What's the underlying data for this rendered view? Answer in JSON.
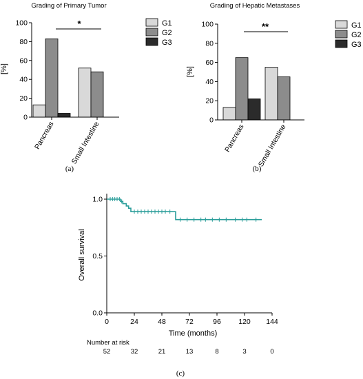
{
  "chart_data": [
    {
      "id": "a",
      "type": "bar",
      "title": "Grading of Primary Tumor",
      "ylabel": "[%]",
      "xlabel": "",
      "ylim": [
        0,
        100
      ],
      "yticks": [
        0,
        20,
        40,
        60,
        80,
        100
      ],
      "categories": [
        "Pancreas",
        "Small Intestine"
      ],
      "series": [
        {
          "name": "G1",
          "color": "#d9d9d9",
          "values": [
            13,
            52
          ]
        },
        {
          "name": "G2",
          "color": "#8c8c8c",
          "values": [
            83,
            48
          ]
        },
        {
          "name": "G3",
          "color": "#2b2b2b",
          "values": [
            4,
            0
          ]
        }
      ],
      "significance": "*",
      "caption": "(a)",
      "legend_position": "right"
    },
    {
      "id": "b",
      "type": "bar",
      "title": "Grading of Hepatic Metastases",
      "ylabel": "[%]",
      "xlabel": "",
      "ylim": [
        0,
        100
      ],
      "yticks": [
        0,
        20,
        40,
        60,
        80,
        100
      ],
      "categories": [
        "Pancreas",
        "Small Intestine"
      ],
      "series": [
        {
          "name": "G1",
          "color": "#d9d9d9",
          "values": [
            13,
            55
          ]
        },
        {
          "name": "G2",
          "color": "#8c8c8c",
          "values": [
            65,
            45
          ]
        },
        {
          "name": "G3",
          "color": "#2b2b2b",
          "values": [
            22,
            0
          ]
        }
      ],
      "significance": "**",
      "caption": "(b)",
      "legend_position": "right"
    },
    {
      "id": "c",
      "type": "line",
      "subtype": "kaplan-meier",
      "title": "",
      "xlabel": "Time (months)",
      "ylabel": "Overall survival",
      "xlim": [
        0,
        144
      ],
      "ylim": [
        0,
        1
      ],
      "xticks": [
        0,
        24,
        48,
        72,
        96,
        120,
        144
      ],
      "yticks": [
        0.0,
        0.5,
        1.0
      ],
      "ytick_labels": [
        "0.0",
        "0.5",
        "1.0"
      ],
      "line_color": "#2a9d9a",
      "step": [
        {
          "t": 0,
          "s": 1.0
        },
        {
          "t": 12,
          "s": 0.98
        },
        {
          "t": 14,
          "s": 0.96
        },
        {
          "t": 17,
          "s": 0.94
        },
        {
          "t": 19,
          "s": 0.92
        },
        {
          "t": 21,
          "s": 0.89
        },
        {
          "t": 60,
          "s": 0.82
        },
        {
          "t": 135,
          "s": 0.82
        }
      ],
      "censor_times": [
        3,
        5,
        7,
        9,
        11,
        13,
        24,
        27,
        30,
        33,
        36,
        39,
        42,
        45,
        48,
        51,
        55,
        64,
        70,
        76,
        82,
        86,
        92,
        98,
        104,
        112,
        118,
        122,
        130
      ],
      "risk_table": {
        "label": "Number at risk",
        "times": [
          0,
          24,
          48,
          72,
          96,
          120,
          144
        ],
        "counts": [
          "52",
          "32",
          "21",
          "13",
          "8",
          "3",
          "0"
        ]
      },
      "caption": "(c)"
    }
  ]
}
